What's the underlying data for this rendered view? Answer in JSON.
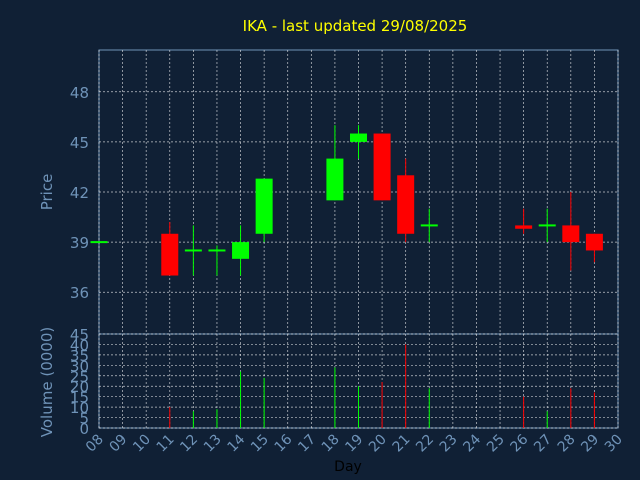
{
  "chart_data": {
    "type": "candlestick",
    "title": "IKA - last updated 29/08/2025",
    "xlabel": "Day",
    "ylabel_price": "Price",
    "ylabel_volume": "Volume (0000)",
    "x_ticks": [
      "08",
      "09",
      "10",
      "11",
      "12",
      "13",
      "14",
      "15",
      "16",
      "17",
      "18",
      "19",
      "20",
      "21",
      "22",
      "23",
      "24",
      "25",
      "26",
      "27",
      "28",
      "29",
      "30"
    ],
    "price_ylim": [
      33.5,
      50.5
    ],
    "price_ticks": [
      36,
      39,
      42,
      45,
      48
    ],
    "volume_ylim": [
      0,
      45
    ],
    "volume_ticks": [
      0,
      5,
      10,
      15,
      20,
      25,
      30,
      35,
      40,
      45
    ],
    "grid": true,
    "colors": {
      "up": "#00ff00",
      "down": "#ff0000",
      "title": "#ffff00",
      "axis_text": "#6f93b8",
      "grid": "#ffffff"
    },
    "days": [
      {
        "day": 8,
        "open": 39.0,
        "high": 39.0,
        "low": 39.0,
        "close": 39.0,
        "volume": 0
      },
      {
        "day": 11,
        "open": 39.5,
        "high": 40.2,
        "low": 37.0,
        "close": 37.0,
        "volume": 10
      },
      {
        "day": 12,
        "open": 38.5,
        "high": 40.0,
        "low": 37.0,
        "close": 38.5,
        "volume": 8
      },
      {
        "day": 13,
        "open": 38.5,
        "high": 38.8,
        "low": 37.0,
        "close": 38.5,
        "volume": 9
      },
      {
        "day": 14,
        "open": 38.0,
        "high": 40.0,
        "low": 37.0,
        "close": 39.0,
        "volume": 27
      },
      {
        "day": 15,
        "open": 39.5,
        "high": 42.8,
        "low": 39.0,
        "close": 42.8,
        "volume": 24
      },
      {
        "day": 18,
        "open": 41.5,
        "high": 46.0,
        "low": 41.5,
        "close": 44.0,
        "volume": 29
      },
      {
        "day": 19,
        "open": 45.0,
        "high": 46.0,
        "low": 44.0,
        "close": 45.5,
        "volume": 20
      },
      {
        "day": 20,
        "open": 45.5,
        "high": 45.5,
        "low": 41.5,
        "close": 41.5,
        "volume": 22
      },
      {
        "day": 21,
        "open": 43.0,
        "high": 44.0,
        "low": 39.0,
        "close": 39.5,
        "volume": 40
      },
      {
        "day": 22,
        "open": 39.9,
        "high": 41.0,
        "low": 39.0,
        "close": 40.0,
        "volume": 19
      },
      {
        "day": 26,
        "open": 40.0,
        "high": 41.0,
        "low": 39.5,
        "close": 39.8,
        "volume": 15
      },
      {
        "day": 27,
        "open": 39.9,
        "high": 41.0,
        "low": 39.0,
        "close": 40.0,
        "volume": 8
      },
      {
        "day": 28,
        "open": 40.0,
        "high": 42.0,
        "low": 37.3,
        "close": 39.0,
        "volume": 19
      },
      {
        "day": 29,
        "open": 39.5,
        "high": 39.5,
        "low": 37.8,
        "close": 38.5,
        "volume": 17
      }
    ]
  }
}
